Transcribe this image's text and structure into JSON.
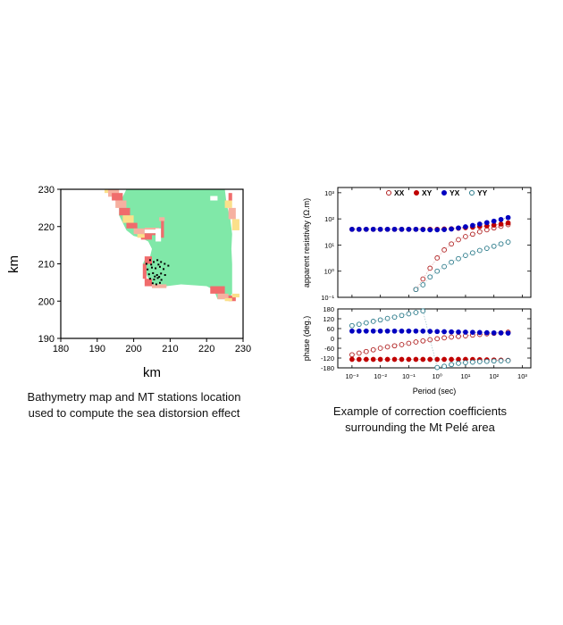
{
  "captions": {
    "left_line1": "Bathymetry map and MT stations location",
    "left_line2": "used to compute the sea distorsion effect",
    "right_line1": "Example of correction coefficients",
    "right_line2": "surrounding the Mt Pelé area"
  },
  "colors": {
    "land": "#80e8a8",
    "shore1": "#f06c6c",
    "shore2": "#f6b0a0",
    "shore3": "#fbe08a",
    "station": "#000000",
    "XX": "#b02020",
    "XY": "#c00000",
    "YX": "#0000c0",
    "YY": "#2a7a8a"
  },
  "chart_data": [
    {
      "type": "heatmap",
      "xlabel": "km",
      "ylabel": "km",
      "xlim": [
        180,
        230
      ],
      "ylim": [
        190,
        230
      ],
      "xticks": [
        "180",
        "190",
        "200",
        "210",
        "220",
        "230"
      ],
      "yticks": [
        "190",
        "200",
        "210",
        "220",
        "230"
      ],
      "stations_count": 28
    },
    {
      "type": "scatter",
      "subplot": "apparent resistivity",
      "ylabel": "apparent resistivity (Ω.m)",
      "yscale": "log",
      "ylim": [
        0.1,
        1000
      ],
      "yticks": [
        "10⁻¹",
        "10⁰",
        "10¹",
        "10²",
        "10³"
      ],
      "legend": [
        "XX",
        "XY",
        "YX",
        "YY"
      ],
      "legend_position": "top",
      "x_log10": [
        -3,
        -2.75,
        -2.5,
        -2.25,
        -2,
        -1.75,
        -1.5,
        -1.25,
        -1,
        -0.75,
        -0.5,
        -0.25,
        0,
        0.25,
        0.5,
        0.75,
        1,
        1.25,
        1.5,
        1.75,
        2,
        2.25,
        2.5
      ],
      "series": [
        {
          "name": "XX",
          "values": [
            null,
            null,
            null,
            null,
            null,
            null,
            null,
            null,
            null,
            0.2,
            0.5,
            1.3,
            3.2,
            6.5,
            11,
            16,
            21,
            26,
            32,
            38,
            45,
            52,
            60
          ]
        },
        {
          "name": "XY",
          "values": [
            40,
            40,
            40,
            40,
            40,
            40,
            40,
            40,
            40,
            40,
            40,
            40,
            40,
            41,
            42,
            44,
            46,
            48,
            51,
            54,
            58,
            63,
            70
          ]
        },
        {
          "name": "YX",
          "values": [
            40,
            40,
            40,
            40,
            40,
            40,
            40,
            40,
            40,
            40,
            39,
            38,
            38,
            39,
            41,
            45,
            50,
            56,
            63,
            72,
            82,
            95,
            112
          ]
        },
        {
          "name": "YY",
          "values": [
            null,
            null,
            null,
            null,
            null,
            null,
            null,
            null,
            null,
            0.2,
            0.3,
            0.6,
            1.0,
            1.5,
            2.2,
            3.0,
            4.0,
            5.0,
            6.2,
            7.5,
            9.0,
            11,
            13
          ]
        }
      ]
    },
    {
      "type": "scatter",
      "subplot": "phase",
      "xlabel": "Period (sec)",
      "ylabel": "phase (deg.)",
      "ylim": [
        -180,
        180
      ],
      "yticks": [
        "180",
        "120",
        "60",
        "0",
        "-60",
        "-120",
        "-180"
      ],
      "xticks": [
        "10⁻³",
        "10⁻²",
        "10⁻¹",
        "10⁰",
        "10¹",
        "10²",
        "10³"
      ],
      "x_log10": [
        -3,
        -2.75,
        -2.5,
        -2.25,
        -2,
        -1.75,
        -1.5,
        -1.25,
        -1,
        -0.75,
        -0.5,
        -0.25,
        0,
        0.25,
        0.5,
        0.75,
        1,
        1.25,
        1.5,
        1.75,
        2,
        2.25,
        2.5
      ],
      "series": [
        {
          "name": "XX",
          "values": [
            -100,
            -90,
            -80,
            -70,
            -60,
            -52,
            -45,
            -38,
            -30,
            -22,
            -15,
            -8,
            -2,
            3,
            8,
            12,
            16,
            20,
            24,
            28,
            31,
            34,
            38
          ]
        },
        {
          "name": "XY",
          "values": [
            -128,
            -128,
            -128,
            -128,
            -128,
            -128,
            -128,
            -128,
            -128,
            -128,
            -128,
            -128,
            -128,
            -128,
            -128,
            -128,
            -128,
            -129,
            -130,
            -131,
            -132,
            -133,
            -134
          ]
        },
        {
          "name": "YX",
          "values": [
            45,
            45,
            45,
            45,
            45,
            45,
            45,
            45,
            45,
            45,
            44,
            43,
            42,
            41,
            40,
            39,
            38,
            37,
            36,
            35,
            34,
            33,
            32
          ]
        },
        {
          "name": "YY",
          "values": [
            78,
            86,
            95,
            104,
            113,
            122,
            130,
            140,
            150,
            158,
            168,
            null,
            -178,
            -170,
            -160,
            -152,
            -148,
            -145,
            -142,
            -140,
            -138,
            -137,
            -136
          ]
        }
      ]
    }
  ]
}
